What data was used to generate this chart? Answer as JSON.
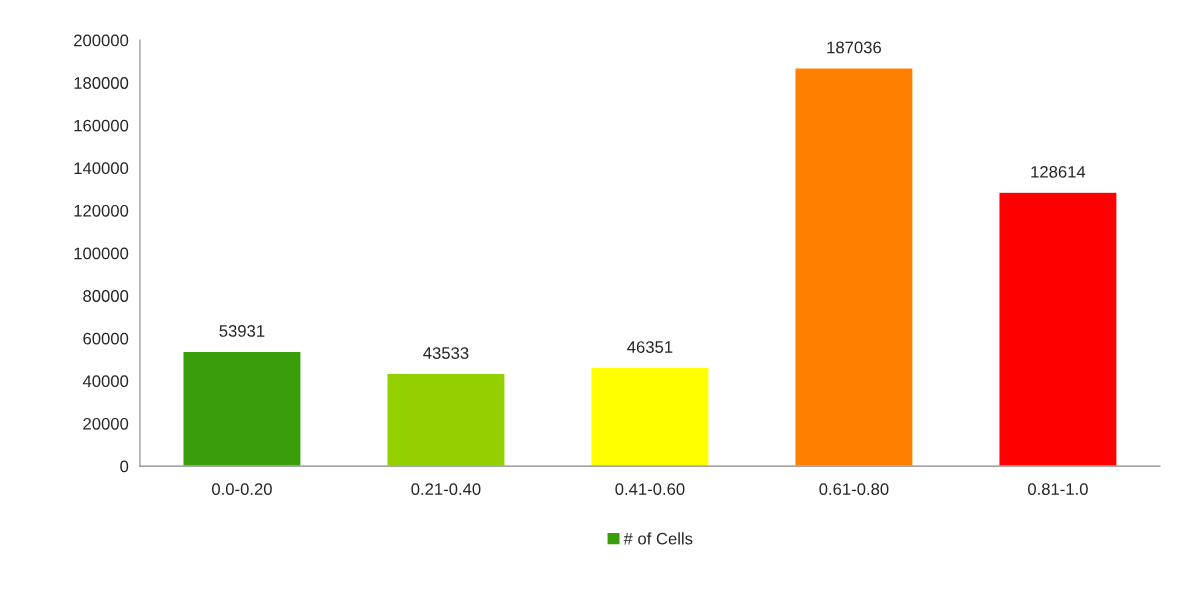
{
  "chart_data": {
    "type": "bar",
    "categories": [
      "0.0-0.20",
      "0.21-0.40",
      "0.41-0.60",
      "0.61-0.80",
      "0.81-1.0"
    ],
    "series": [
      {
        "name": "# of Cells",
        "color": "#3a9e0a",
        "colors": [
          "#3a9e0a",
          "#92d000",
          "#ffff00",
          "#ff8000",
          "#ff0000"
        ],
        "values": [
          53931,
          43533,
          46351,
          187036,
          128614
        ]
      }
    ],
    "ylim": [
      0,
      200000
    ],
    "yticks": [
      0,
      20000,
      40000,
      60000,
      80000,
      100000,
      120000,
      140000,
      160000,
      180000,
      200000
    ],
    "data_labels": true,
    "grid": false,
    "legend": "bottom"
  }
}
